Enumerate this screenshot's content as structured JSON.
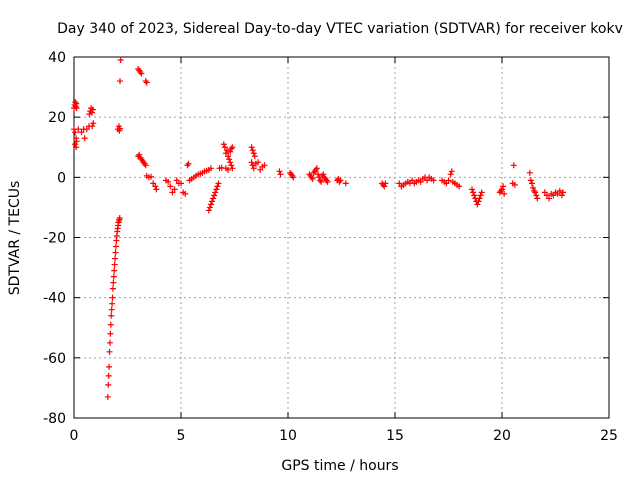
{
  "chart_data": {
    "type": "scatter",
    "title": "Day 340 of 2023, Sidereal Day-to-day VTEC variation (SDTVAR) for receiver kokv",
    "xlabel": "GPS time / hours",
    "ylabel": "SDTVAR / TECUs",
    "xlim": [
      0,
      25
    ],
    "ylim": [
      -80,
      40
    ],
    "xticks": [
      0,
      5,
      10,
      15,
      20,
      25
    ],
    "yticks": [
      -80,
      -60,
      -40,
      -20,
      0,
      20,
      40
    ],
    "grid": true,
    "marker": "+",
    "series": [
      {
        "name": "SDTVAR",
        "color": "#ff0000",
        "points": [
          [
            0.0,
            23
          ],
          [
            0.03,
            24
          ],
          [
            0.06,
            25
          ],
          [
            0.08,
            23.5
          ],
          [
            0.1,
            24.5
          ],
          [
            0.12,
            23
          ],
          [
            0.0,
            16
          ],
          [
            0.05,
            15
          ],
          [
            0.1,
            13
          ],
          [
            0.05,
            11
          ],
          [
            0.1,
            10
          ],
          [
            0.12,
            12
          ],
          [
            0.2,
            16
          ],
          [
            0.35,
            15
          ],
          [
            0.45,
            16
          ],
          [
            0.5,
            13
          ],
          [
            0.6,
            16
          ],
          [
            0.7,
            17
          ],
          [
            0.72,
            21
          ],
          [
            0.76,
            22
          ],
          [
            0.8,
            23
          ],
          [
            0.84,
            21.5
          ],
          [
            0.88,
            22.5
          ],
          [
            0.9,
            18
          ],
          [
            0.85,
            17
          ],
          [
            1.58,
            -73
          ],
          [
            1.6,
            -69
          ],
          [
            1.62,
            -66
          ],
          [
            1.64,
            -63
          ],
          [
            1.66,
            -58
          ],
          [
            1.68,
            -55
          ],
          [
            1.7,
            -52
          ],
          [
            1.72,
            -49
          ],
          [
            1.74,
            -46
          ],
          [
            1.76,
            -44
          ],
          [
            1.78,
            -42
          ],
          [
            1.8,
            -40
          ],
          [
            1.82,
            -37
          ],
          [
            1.84,
            -35
          ],
          [
            1.86,
            -33
          ],
          [
            1.88,
            -31
          ],
          [
            1.9,
            -29
          ],
          [
            1.92,
            -27
          ],
          [
            1.94,
            -25
          ],
          [
            1.96,
            -23
          ],
          [
            1.98,
            -21
          ],
          [
            2.0,
            -19.5
          ],
          [
            2.02,
            -18
          ],
          [
            2.04,
            -17
          ],
          [
            2.06,
            -16
          ],
          [
            2.08,
            -15
          ],
          [
            2.1,
            -14.5
          ],
          [
            2.12,
            -14
          ],
          [
            2.14,
            -13.5
          ],
          [
            2.15,
            32
          ],
          [
            2.18,
            39
          ],
          [
            2.05,
            16
          ],
          [
            2.1,
            17
          ],
          [
            2.12,
            15.5
          ],
          [
            2.15,
            16.2
          ],
          [
            3.0,
            36
          ],
          [
            3.05,
            35.5
          ],
          [
            3.1,
            35
          ],
          [
            3.15,
            34.5
          ],
          [
            3.35,
            32
          ],
          [
            3.4,
            31.5
          ],
          [
            3.0,
            7
          ],
          [
            3.05,
            7.5
          ],
          [
            3.1,
            6.5
          ],
          [
            3.15,
            6
          ],
          [
            3.2,
            5.5
          ],
          [
            3.25,
            5
          ],
          [
            3.3,
            4.5
          ],
          [
            3.35,
            4
          ],
          [
            3.4,
            0.5
          ],
          [
            3.5,
            0
          ],
          [
            3.6,
            0.2
          ],
          [
            3.7,
            -2
          ],
          [
            3.8,
            -3
          ],
          [
            3.85,
            -4
          ],
          [
            4.3,
            -1
          ],
          [
            4.4,
            -1.5
          ],
          [
            4.5,
            -3
          ],
          [
            4.6,
            -5
          ],
          [
            4.7,
            -4
          ],
          [
            4.8,
            -1
          ],
          [
            4.9,
            -2
          ],
          [
            5.0,
            -2
          ],
          [
            5.1,
            -5
          ],
          [
            5.2,
            -5.5
          ],
          [
            5.3,
            4
          ],
          [
            5.35,
            4.5
          ],
          [
            5.4,
            -1
          ],
          [
            5.5,
            -0.5
          ],
          [
            5.6,
            0
          ],
          [
            5.7,
            0.5
          ],
          [
            5.8,
            1
          ],
          [
            5.9,
            1.2
          ],
          [
            6.0,
            1.5
          ],
          [
            6.1,
            2
          ],
          [
            6.2,
            2.2
          ],
          [
            6.3,
            2.5
          ],
          [
            6.4,
            3
          ],
          [
            6.3,
            -11
          ],
          [
            6.35,
            -10
          ],
          [
            6.4,
            -9
          ],
          [
            6.45,
            -8
          ],
          [
            6.5,
            -7
          ],
          [
            6.55,
            -6
          ],
          [
            6.6,
            -5
          ],
          [
            6.65,
            -4
          ],
          [
            6.7,
            -3
          ],
          [
            6.75,
            -2
          ],
          [
            6.8,
            3
          ],
          [
            6.9,
            3.2
          ],
          [
            7.0,
            11
          ],
          [
            7.05,
            10
          ],
          [
            7.1,
            8
          ],
          [
            7.15,
            9
          ],
          [
            7.2,
            7
          ],
          [
            7.25,
            6
          ],
          [
            7.3,
            5
          ],
          [
            7.35,
            4
          ],
          [
            7.4,
            3
          ],
          [
            7.1,
            3
          ],
          [
            7.2,
            2.5
          ],
          [
            7.3,
            8.5
          ],
          [
            7.35,
            9.5
          ],
          [
            7.4,
            10
          ],
          [
            8.3,
            10
          ],
          [
            8.35,
            9
          ],
          [
            8.4,
            8
          ],
          [
            8.45,
            7
          ],
          [
            8.3,
            5
          ],
          [
            8.35,
            4
          ],
          [
            8.4,
            3
          ],
          [
            8.5,
            4.5
          ],
          [
            8.6,
            5
          ],
          [
            8.7,
            2.5
          ],
          [
            8.8,
            3.5
          ],
          [
            8.9,
            4
          ],
          [
            9.6,
            2
          ],
          [
            9.65,
            1
          ],
          [
            10.1,
            1.5
          ],
          [
            10.15,
            1
          ],
          [
            10.2,
            0.5
          ],
          [
            10.25,
            0
          ],
          [
            11.0,
            1
          ],
          [
            11.05,
            0.5
          ],
          [
            11.1,
            0
          ],
          [
            11.15,
            -0.5
          ],
          [
            11.2,
            1.5
          ],
          [
            11.25,
            2
          ],
          [
            11.3,
            2.5
          ],
          [
            11.35,
            3
          ],
          [
            11.4,
            1
          ],
          [
            11.45,
            0
          ],
          [
            11.5,
            -1
          ],
          [
            11.55,
            -1.5
          ],
          [
            11.6,
            0.5
          ],
          [
            11.65,
            1
          ],
          [
            11.7,
            0
          ],
          [
            11.75,
            -0.5
          ],
          [
            11.8,
            -1
          ],
          [
            11.85,
            -1.5
          ],
          [
            12.3,
            -1
          ],
          [
            12.35,
            -0.5
          ],
          [
            12.4,
            -1.5
          ],
          [
            12.45,
            -1
          ],
          [
            12.7,
            -2
          ],
          [
            14.4,
            -2
          ],
          [
            14.45,
            -2.5
          ],
          [
            14.5,
            -3
          ],
          [
            14.55,
            -2
          ],
          [
            15.2,
            -2
          ],
          [
            15.3,
            -3
          ],
          [
            15.4,
            -2.5
          ],
          [
            15.5,
            -2
          ],
          [
            15.6,
            -1.5
          ],
          [
            15.7,
            -2
          ],
          [
            15.8,
            -1
          ],
          [
            15.9,
            -2
          ],
          [
            16.0,
            -1.5
          ],
          [
            16.1,
            -1
          ],
          [
            16.2,
            -1.5
          ],
          [
            16.3,
            -0.5
          ],
          [
            16.4,
            0
          ],
          [
            16.5,
            -1
          ],
          [
            16.6,
            0
          ],
          [
            16.7,
            -0.5
          ],
          [
            16.8,
            -1
          ],
          [
            17.2,
            -1
          ],
          [
            17.3,
            -1.5
          ],
          [
            17.4,
            -2
          ],
          [
            17.5,
            -1
          ],
          [
            17.6,
            1
          ],
          [
            17.65,
            2
          ],
          [
            17.7,
            -1.5
          ],
          [
            17.8,
            -2
          ],
          [
            17.9,
            -2.5
          ],
          [
            18.0,
            -3
          ],
          [
            18.6,
            -4
          ],
          [
            18.65,
            -5
          ],
          [
            18.7,
            -6
          ],
          [
            18.75,
            -7
          ],
          [
            18.8,
            -8
          ],
          [
            18.85,
            -9
          ],
          [
            18.9,
            -8
          ],
          [
            18.95,
            -7
          ],
          [
            19.0,
            -6
          ],
          [
            19.05,
            -5
          ],
          [
            19.9,
            -5
          ],
          [
            19.95,
            -4.5
          ],
          [
            20.0,
            -4
          ],
          [
            20.05,
            -3
          ],
          [
            20.1,
            -5.5
          ],
          [
            20.5,
            -2
          ],
          [
            20.55,
            4
          ],
          [
            20.6,
            -2.5
          ],
          [
            21.3,
            1.5
          ],
          [
            21.35,
            -1
          ],
          [
            21.4,
            -2
          ],
          [
            21.45,
            -3.5
          ],
          [
            21.5,
            -4.5
          ],
          [
            21.55,
            -5
          ],
          [
            21.6,
            -6
          ],
          [
            21.65,
            -7
          ],
          [
            22.0,
            -5
          ],
          [
            22.1,
            -6
          ],
          [
            22.2,
            -7
          ],
          [
            22.3,
            -5.5
          ],
          [
            22.4,
            -6
          ],
          [
            22.5,
            -5
          ],
          [
            22.6,
            -5.5
          ],
          [
            22.7,
            -4.5
          ],
          [
            22.8,
            -6
          ],
          [
            22.85,
            -5
          ]
        ]
      }
    ]
  }
}
